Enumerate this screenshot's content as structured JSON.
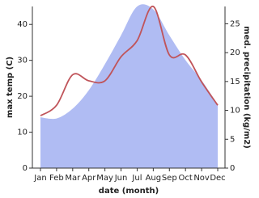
{
  "chart_data": {
    "type": "line-area",
    "x_label": "date (month)",
    "y_label": "max temp (C)",
    "y2_label": "med. precipitation (kg/m2)",
    "categories": [
      "Jan",
      "Feb",
      "Mar",
      "Apr",
      "May",
      "Jun",
      "Jul",
      "Aug",
      "Sep",
      "Oct",
      "Nov",
      "Dec"
    ],
    "series": [
      {
        "name": "med. precipitation",
        "color": "#b0bcf3",
        "axis": "y2",
        "style": "area",
        "values": [
          8.8,
          8.6,
          10.3,
          13.5,
          18,
          23,
          28,
          27.5,
          23,
          18.7,
          15.2,
          11
        ]
      },
      {
        "name": "max temp",
        "color": "#c0545a",
        "axis": "y",
        "style": "line",
        "values": [
          14.6,
          17.5,
          26,
          24.3,
          24.3,
          31,
          35.5,
          45,
          31.5,
          31.5,
          24,
          17.5
        ]
      }
    ],
    "ylim": [
      0,
      45
    ],
    "yticks": [
      0,
      10,
      20,
      30,
      40
    ],
    "y2lim": [
      0,
      28
    ],
    "y2ticks": [
      0,
      5,
      10,
      15,
      20,
      25
    ]
  }
}
